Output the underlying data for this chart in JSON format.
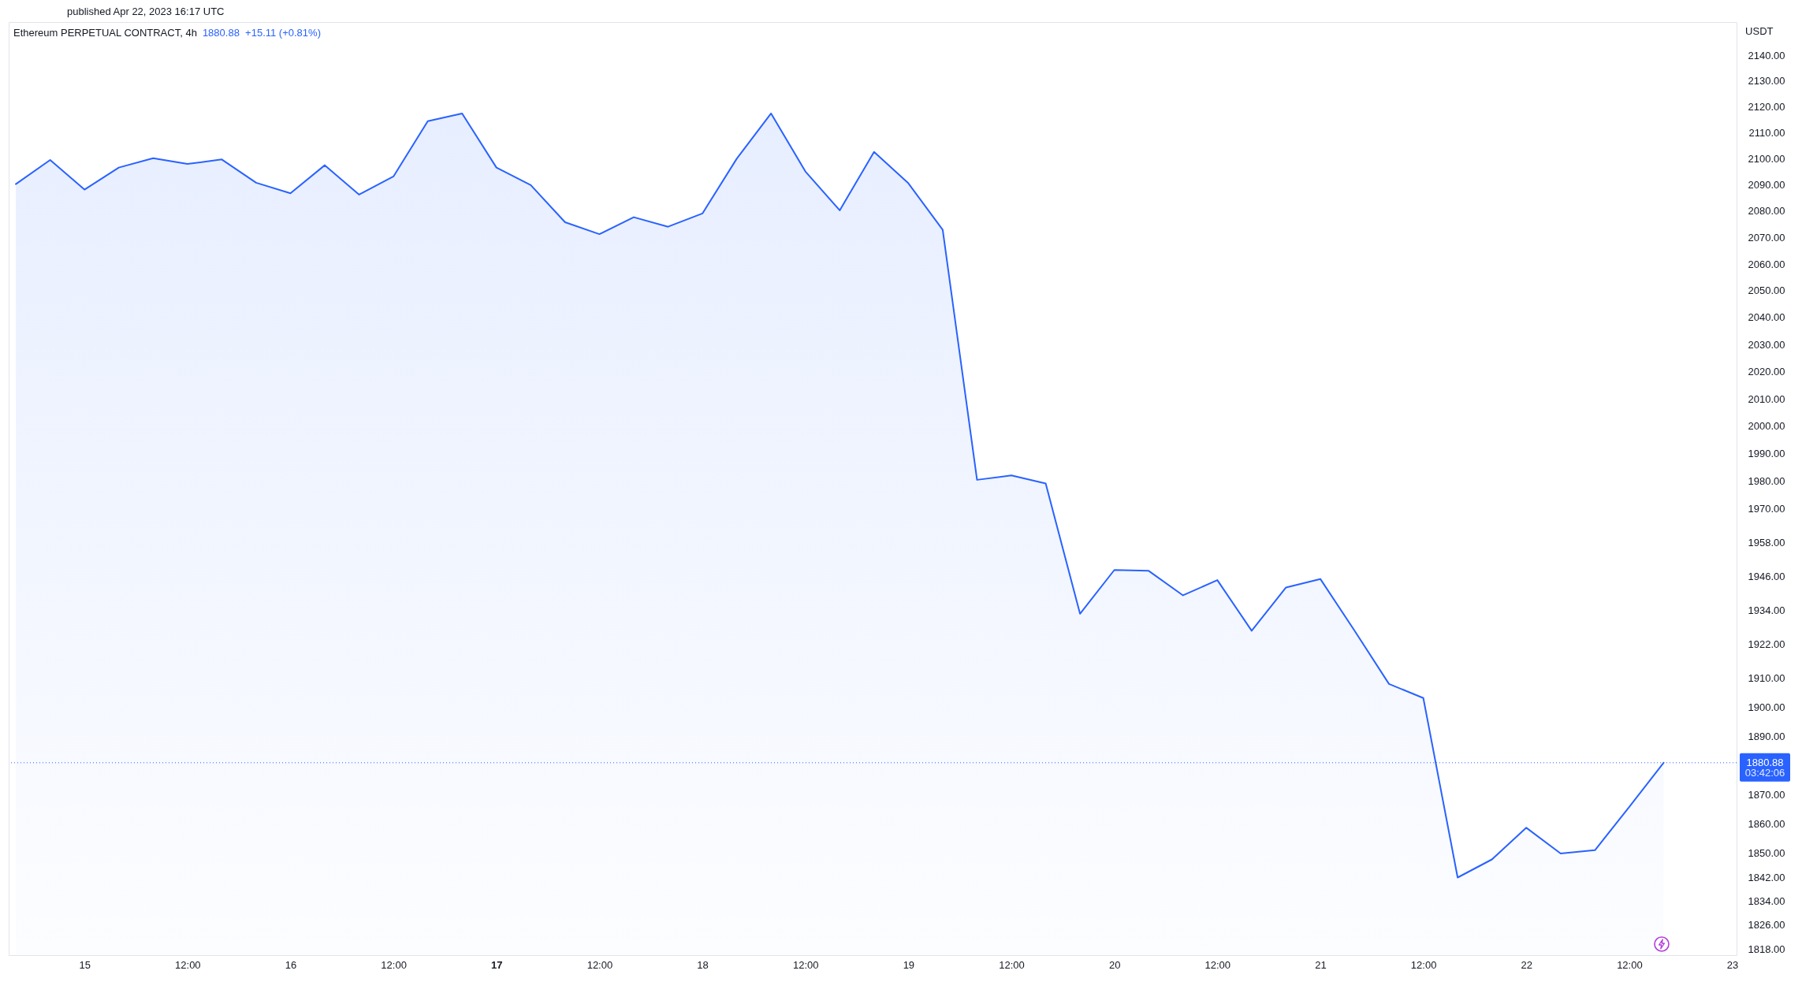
{
  "chart_data": {
    "type": "area",
    "title": "Ethereum PERPETUAL CONTRACT, 4h",
    "subtitle": "1880.88  +15.11 (+0.81%)",
    "ylabel": "USDT",
    "annotations": [
      "published Apr 22, 2023 16:17 UTC",
      "03:42:06"
    ],
    "x": [
      "2023-04-14T16:00",
      "2023-04-14T20:00",
      "2023-04-15T00:00",
      "2023-04-15T04:00",
      "2023-04-15T08:00",
      "2023-04-15T12:00",
      "2023-04-15T16:00",
      "2023-04-15T20:00",
      "2023-04-16T00:00",
      "2023-04-16T04:00",
      "2023-04-16T08:00",
      "2023-04-16T12:00",
      "2023-04-16T16:00",
      "2023-04-16T20:00",
      "2023-04-17T00:00",
      "2023-04-17T04:00",
      "2023-04-17T08:00",
      "2023-04-17T12:00",
      "2023-04-17T16:00",
      "2023-04-17T20:00",
      "2023-04-18T00:00",
      "2023-04-18T04:00",
      "2023-04-18T08:00",
      "2023-04-18T12:00",
      "2023-04-18T16:00",
      "2023-04-18T20:00",
      "2023-04-19T00:00",
      "2023-04-19T04:00",
      "2023-04-19T08:00",
      "2023-04-19T12:00",
      "2023-04-19T16:00",
      "2023-04-19T20:00",
      "2023-04-20T00:00",
      "2023-04-20T04:00",
      "2023-04-20T08:00",
      "2023-04-20T12:00",
      "2023-04-20T16:00",
      "2023-04-20T20:00",
      "2023-04-21T00:00",
      "2023-04-21T04:00",
      "2023-04-21T08:00",
      "2023-04-21T12:00",
      "2023-04-21T16:00",
      "2023-04-21T20:00",
      "2023-04-22T00:00",
      "2023-04-22T04:00",
      "2023-04-22T08:00",
      "2023-04-22T12:00",
      "2023-04-22T16:00"
    ],
    "values": [
      2090.3,
      2099.5,
      2088.2,
      2096.6,
      2100.2,
      2098.0,
      2099.7,
      2090.8,
      2086.8,
      2097.5,
      2086.3,
      2093.2,
      2114.4,
      2117.4,
      2096.6,
      2089.9,
      2075.8,
      2071.3,
      2077.7,
      2074.1,
      2079.1,
      2100.0,
      2117.4,
      2095.1,
      2080.3,
      2102.6,
      2090.6,
      2072.9,
      1980.5,
      1982.1,
      1979.2,
      1932.7,
      1948.2,
      1947.9,
      1939.2,
      1944.6,
      1926.7,
      1942.0,
      1945.0,
      1926.7,
      1908.1,
      1903.2,
      1841.9,
      1848.0,
      1858.7,
      1850.0,
      1851.1,
      1865.8,
      1880.88
    ],
    "color": "#2962ff",
    "log": true,
    "xlim": [
      "2023-04-14T15:10",
      "2023-04-23T00:30"
    ],
    "xticks": [
      {
        "value": "2023-04-15",
        "label": "15"
      },
      {
        "value": "2023-04-15T12:00",
        "label": "12:00"
      },
      {
        "value": "2023-04-16",
        "label": "16"
      },
      {
        "value": "2023-04-16T12:00",
        "label": "12:00"
      },
      {
        "value": "2023-04-17",
        "label": "17"
      },
      {
        "value": "2023-04-17T12:00",
        "label": "12:00"
      },
      {
        "value": "2023-04-18",
        "label": "18"
      },
      {
        "value": "2023-04-18T12:00",
        "label": "12:00"
      },
      {
        "value": "2023-04-19",
        "label": "19"
      },
      {
        "value": "2023-04-19T12:00",
        "label": "12:00"
      },
      {
        "value": "2023-04-20",
        "label": "20"
      },
      {
        "value": "2023-04-20T12:00",
        "label": "12:00"
      },
      {
        "value": "2023-04-21",
        "label": "21"
      },
      {
        "value": "2023-04-21T12:00",
        "label": "12:00"
      },
      {
        "value": "2023-04-22",
        "label": "22"
      },
      {
        "value": "2023-04-22T12:00",
        "label": "12:00"
      },
      {
        "value": "2023-04-23",
        "label": "23"
      }
    ],
    "ylim": [
      1816,
      2153
    ],
    "yticks": [
      {
        "value": 2140,
        "label": "2140.00"
      },
      {
        "value": 2130,
        "label": "2130.00"
      },
      {
        "value": 2120,
        "label": "2120.00"
      },
      {
        "value": 2110,
        "label": "2110.00"
      },
      {
        "value": 2100,
        "label": "2100.00"
      },
      {
        "value": 2090,
        "label": "2090.00"
      },
      {
        "value": 2080,
        "label": "2080.00"
      },
      {
        "value": 2070,
        "label": "2070.00"
      },
      {
        "value": 2060,
        "label": "2060.00"
      },
      {
        "value": 2050,
        "label": "2050.00"
      },
      {
        "value": 2040,
        "label": "2040.00"
      },
      {
        "value": 2030,
        "label": "2030.00"
      },
      {
        "value": 2020,
        "label": "2020.00"
      },
      {
        "value": 2010,
        "label": "2010.00"
      },
      {
        "value": 2000,
        "label": "2000.00"
      },
      {
        "value": 1990,
        "label": "1990.00"
      },
      {
        "value": 1980,
        "label": "1980.00"
      },
      {
        "value": 1970,
        "label": "1970.00"
      },
      {
        "value": 1958,
        "label": "1958.00"
      },
      {
        "value": 1946,
        "label": "1946.00"
      },
      {
        "value": 1934,
        "label": "1934.00"
      },
      {
        "value": 1922,
        "label": "1922.00"
      },
      {
        "value": 1910,
        "label": "1910.00"
      },
      {
        "value": 1900,
        "label": "1900.00"
      },
      {
        "value": 1890,
        "label": "1890.00"
      },
      {
        "value": 1870,
        "label": "1870.00"
      },
      {
        "value": 1860,
        "label": "1860.00"
      },
      {
        "value": 1850,
        "label": "1850.00"
      },
      {
        "value": 1842,
        "label": "1842.00"
      },
      {
        "value": 1834,
        "label": "1834.00"
      },
      {
        "value": 1826,
        "label": "1826.00"
      },
      {
        "value": 1818,
        "label": "1818.00"
      }
    ],
    "ref_lines": [
      {
        "axis": "y",
        "value": 1880.88,
        "label": "1880.88",
        "color": "#2962ff",
        "line_style": "dotted"
      }
    ]
  }
}
